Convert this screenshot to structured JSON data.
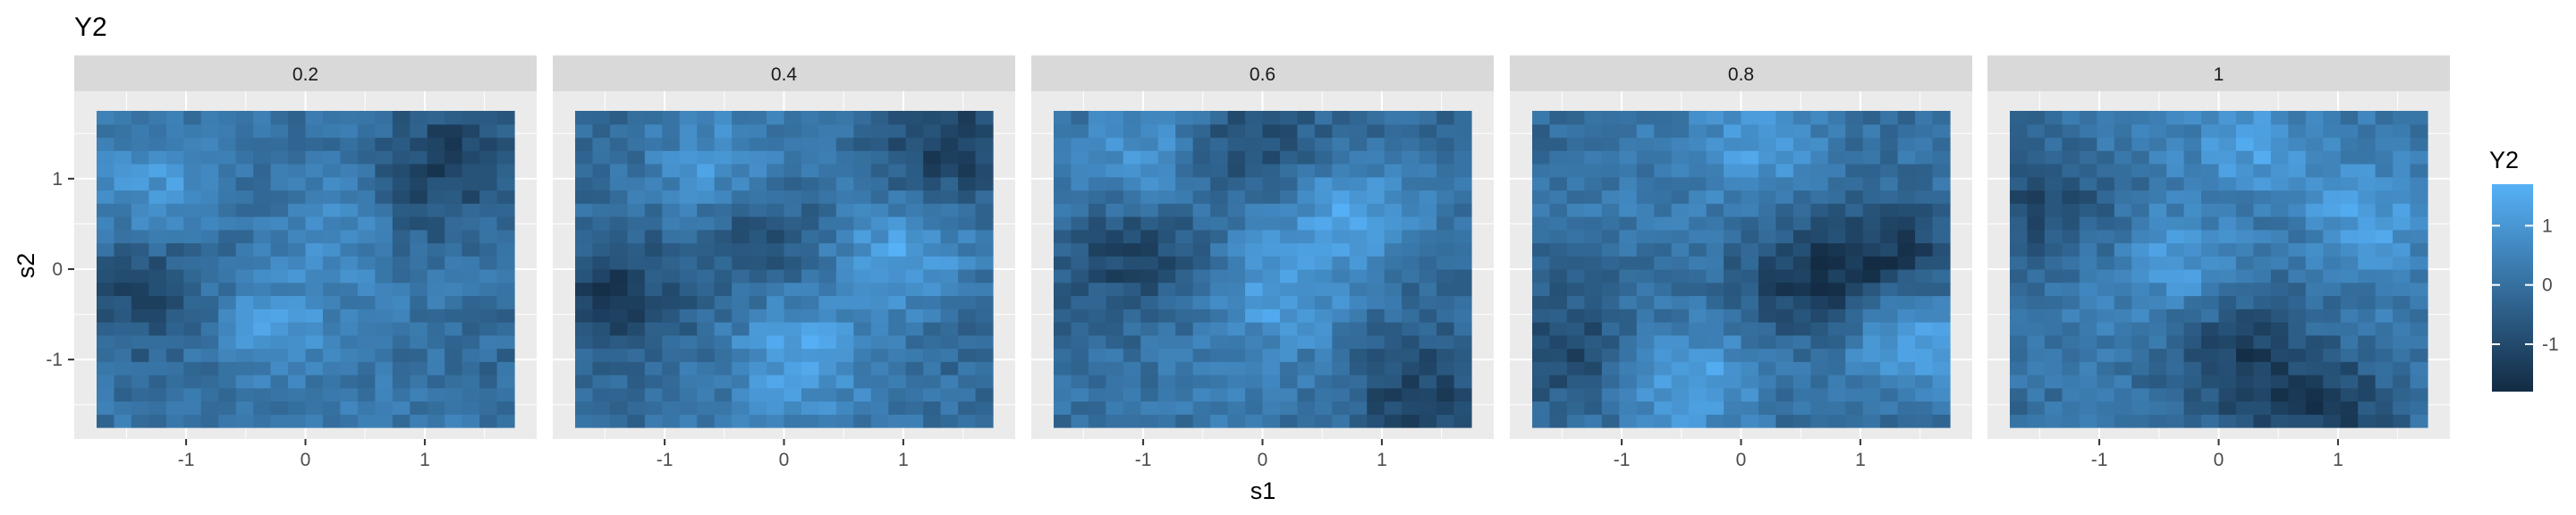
{
  "chart_data": {
    "type": "heatmap",
    "title": "Y2",
    "xlabel": "s1",
    "ylabel": "s2",
    "facet_variable": "time",
    "facets": [
      "0.2",
      "0.4",
      "0.6",
      "0.8",
      "1"
    ],
    "x_range": [
      -1.75,
      1.75
    ],
    "y_range": [
      -1.75,
      1.75
    ],
    "x_ticks": [
      -1,
      0,
      1
    ],
    "y_ticks": [
      -1,
      0,
      1
    ],
    "x_tick_labels": [
      "-1",
      "0",
      "1"
    ],
    "y_tick_labels": [
      "-1",
      "0",
      "1"
    ],
    "grid": true,
    "grid_cells": 24,
    "legend": {
      "title": "Y2",
      "ticks": [
        1,
        0,
        -1
      ],
      "tick_labels": [
        "1",
        "0",
        "-1"
      ],
      "min": -1.8,
      "max": 1.7,
      "low_color": "#132B43",
      "high_color": "#56B1F7",
      "placement": "right"
    },
    "panel_background": "#EBEBEB",
    "strip_background": "#D9D9D9",
    "field_summary": [
      {
        "facet": "0.2",
        "bright_regions": [
          [
            -0.3,
            -0.7
          ],
          [
            0.4,
            0.6
          ],
          [
            -1.2,
            0.9
          ]
        ],
        "dark_regions": [
          [
            1.2,
            1.4
          ],
          [
            -1.4,
            -0.2
          ],
          [
            0.8,
            0.6
          ]
        ]
      },
      {
        "facet": "0.4",
        "bright_regions": [
          [
            0.1,
            -0.9
          ],
          [
            1.0,
            0.1
          ],
          [
            -0.6,
            1.1
          ]
        ],
        "dark_regions": [
          [
            1.4,
            1.4
          ],
          [
            -1.5,
            -0.2
          ],
          [
            -0.2,
            0.4
          ]
        ]
      },
      {
        "facet": "0.6",
        "bright_regions": [
          [
            -1.0,
            1.3
          ],
          [
            0.2,
            -0.3
          ],
          [
            0.8,
            0.6
          ]
        ],
        "dark_regions": [
          [
            -1.0,
            0.2
          ],
          [
            1.3,
            -1.4
          ],
          [
            -0.2,
            1.3
          ]
        ]
      },
      {
        "facet": "0.8",
        "bright_regions": [
          [
            0.2,
            1.5
          ],
          [
            -0.4,
            -1.3
          ],
          [
            1.4,
            -0.7
          ]
        ],
        "dark_regions": [
          [
            -1.4,
            -0.9
          ],
          [
            1.3,
            0.2
          ],
          [
            0.6,
            -0.2
          ]
        ]
      },
      {
        "facet": "1",
        "bright_regions": [
          [
            -0.3,
            0.1
          ],
          [
            1.2,
            0.5
          ],
          [
            0.3,
            1.4
          ]
        ],
        "dark_regions": [
          [
            -1.4,
            0.8
          ],
          [
            0.1,
            -0.9
          ],
          [
            0.9,
            -1.5
          ]
        ]
      }
    ]
  }
}
